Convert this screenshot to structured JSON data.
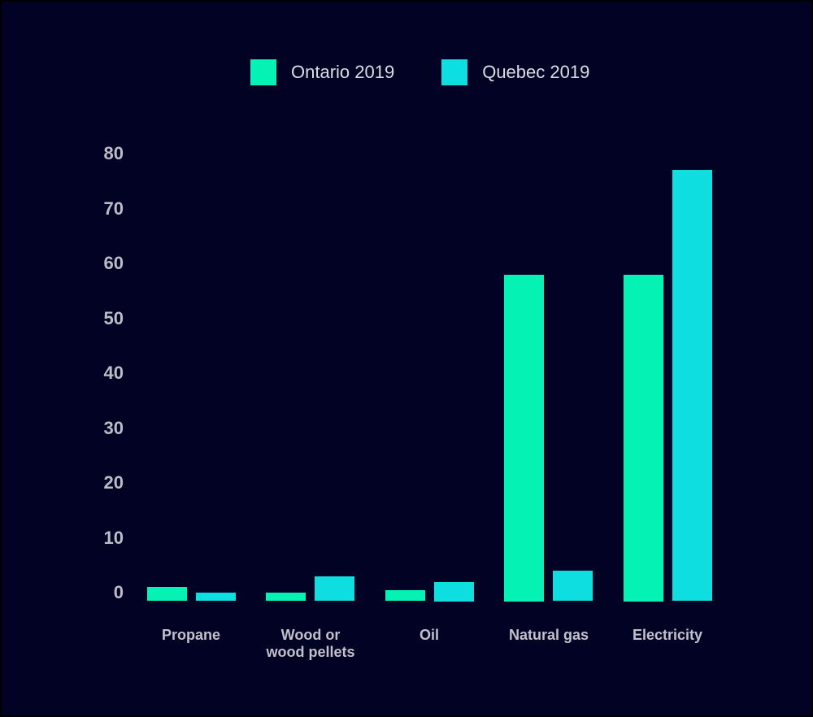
{
  "chart_data": {
    "type": "bar",
    "title": "",
    "xlabel": "",
    "ylabel": "",
    "categories": [
      "Propane",
      "Wood or\nwood pellets",
      "Oil",
      "Natural gas",
      "Electricity"
    ],
    "series": [
      {
        "name": "Ontario 2019",
        "color": "#04F3B4",
        "values": [
          1,
          0,
          0.5,
          58,
          58
        ]
      },
      {
        "name": "Quebec 2019",
        "color": "#0EDEE0",
        "values": [
          0,
          3,
          2,
          4,
          77
        ]
      }
    ],
    "ylim": [
      0,
      80
    ],
    "yticks": [
      0,
      10,
      20,
      30,
      40,
      50,
      60,
      70,
      80
    ],
    "grid": false,
    "axis_lines": false,
    "legend_position": "top"
  },
  "colors": {
    "background": "#020324",
    "legend_text": "#DCDCE1",
    "axis_tick_text": "#BDBCC7",
    "category_label_text": "#C2C1CB"
  }
}
